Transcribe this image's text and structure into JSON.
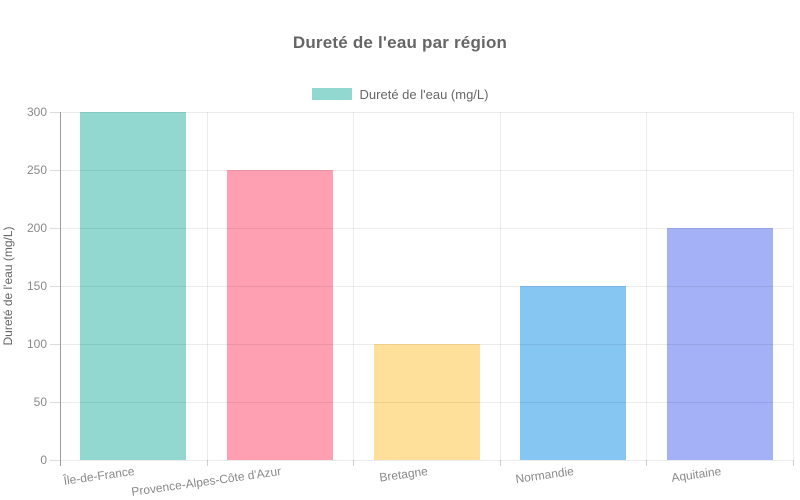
{
  "chart_data": {
    "type": "bar",
    "title": "Dureté de l'eau par région",
    "legend_label": "Dureté de l'eau (mg/L)",
    "legend_position": "top",
    "ylabel": "Dureté de l'eau (mg/L)",
    "xlabel": "",
    "categories": [
      "Île-de-France",
      "Provence-Alpes-Côte d'Azur",
      "Bretagne",
      "Normandie",
      "Aquitaine"
    ],
    "values": [
      300,
      250,
      100,
      150,
      200
    ],
    "bar_colors": [
      "#92D8D1",
      "#FF9FB2",
      "#FFE09B",
      "#85C6F2",
      "#A5B1F7"
    ],
    "yticks": [
      0,
      50,
      100,
      150,
      200,
      250,
      300
    ],
    "ylim": [
      0,
      300
    ],
    "grid": true,
    "colors": {
      "legend_swatch": "#92D8D1",
      "grid": "#e8e8e8",
      "axis_line": "#9b9b9b",
      "title_text": "#666666",
      "tick_text": "#8a8a8a",
      "legend_text": "#666666"
    }
  }
}
